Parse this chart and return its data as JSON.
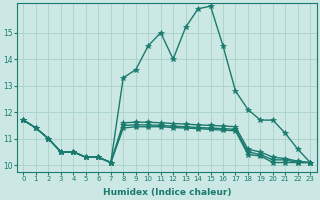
{
  "xlabel": "Humidex (Indice chaleur)",
  "background_color": "#cce8e4",
  "grid_color": "#aed4ce",
  "line_color": "#1a7a6e",
  "xlim": [
    -0.5,
    23.5
  ],
  "ylim": [
    9.75,
    16.1
  ],
  "yticks": [
    10,
    11,
    12,
    13,
    14,
    15
  ],
  "xticks": [
    0,
    1,
    2,
    3,
    4,
    5,
    6,
    7,
    8,
    9,
    10,
    11,
    12,
    13,
    14,
    15,
    16,
    17,
    18,
    19,
    20,
    21,
    22,
    23
  ],
  "series": [
    [
      11.7,
      11.4,
      11.0,
      10.5,
      10.5,
      10.3,
      10.3,
      10.1,
      11.4,
      11.45,
      11.45,
      11.45,
      11.42,
      11.4,
      11.38,
      11.35,
      11.32,
      11.3,
      10.4,
      10.35,
      10.1,
      10.1,
      10.1,
      10.1
    ],
    [
      11.7,
      11.4,
      11.0,
      10.5,
      10.5,
      10.3,
      10.3,
      10.1,
      11.5,
      11.52,
      11.52,
      11.5,
      11.47,
      11.45,
      11.42,
      11.4,
      11.38,
      11.35,
      10.5,
      10.4,
      10.2,
      10.2,
      10.1,
      10.1
    ],
    [
      11.7,
      11.4,
      11.0,
      10.5,
      10.5,
      10.3,
      10.3,
      10.1,
      11.6,
      11.62,
      11.62,
      11.6,
      11.57,
      11.55,
      11.52,
      11.5,
      11.48,
      11.45,
      10.6,
      10.5,
      10.3,
      10.25,
      10.15,
      10.1
    ],
    [
      11.7,
      11.4,
      11.0,
      10.5,
      10.5,
      10.3,
      10.3,
      10.1,
      13.3,
      13.6,
      14.5,
      15.0,
      14.0,
      15.2,
      15.9,
      16.0,
      14.5,
      12.8,
      12.1,
      11.7,
      11.7,
      11.2,
      10.6,
      10.1
    ]
  ],
  "marker": "*",
  "markersize": 4,
  "linewidth": 1.0
}
